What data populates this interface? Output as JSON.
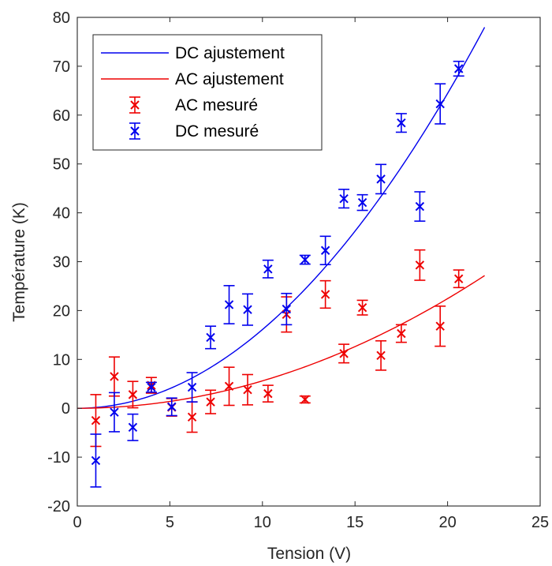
{
  "chart_data": {
    "type": "scatter",
    "xlabel": "Tension (V)",
    "ylabel": "Température (K)",
    "xlim": [
      0,
      25
    ],
    "ylim": [
      -20,
      80
    ],
    "xticks": [
      0,
      5,
      10,
      15,
      20,
      25
    ],
    "yticks": [
      -20,
      -10,
      0,
      10,
      20,
      30,
      40,
      50,
      60,
      70,
      80
    ],
    "grid": false,
    "legend_position": "top-left",
    "colors": {
      "dc": "#0000ee",
      "ac": "#ee0000"
    },
    "fits": [
      {
        "name": "DC ajustement",
        "color": "#0000ee",
        "coef": 0.1611,
        "power": 2,
        "x_range": [
          0,
          22
        ]
      },
      {
        "name": "AC ajustement",
        "color": "#ee0000",
        "coef": 0.0561,
        "power": 2,
        "x_range": [
          0,
          22
        ]
      }
    ],
    "series": [
      {
        "name": "AC mesuré",
        "color": "#ee0000",
        "points": [
          {
            "x": 1.0,
            "y": -2.5,
            "err": 5.3
          },
          {
            "x": 2.0,
            "y": 6.5,
            "err": 4.0
          },
          {
            "x": 3.0,
            "y": 2.8,
            "err": 2.7
          },
          {
            "x": 4.0,
            "y": 4.7,
            "err": 1.6
          },
          {
            "x": 5.1,
            "y": 0.2,
            "err": 1.8
          },
          {
            "x": 6.2,
            "y": -1.8,
            "err": 3.1
          },
          {
            "x": 7.2,
            "y": 1.3,
            "err": 2.4
          },
          {
            "x": 8.2,
            "y": 4.5,
            "err": 3.9
          },
          {
            "x": 9.2,
            "y": 3.8,
            "err": 3.1
          },
          {
            "x": 10.3,
            "y": 3.0,
            "err": 1.7
          },
          {
            "x": 11.3,
            "y": 19.2,
            "err": 3.6
          },
          {
            "x": 12.3,
            "y": 1.8,
            "err": 0.7
          },
          {
            "x": 13.4,
            "y": 23.3,
            "err": 2.8
          },
          {
            "x": 14.4,
            "y": 11.2,
            "err": 1.9
          },
          {
            "x": 15.4,
            "y": 20.6,
            "err": 1.5
          },
          {
            "x": 16.4,
            "y": 10.8,
            "err": 3.0
          },
          {
            "x": 17.5,
            "y": 15.3,
            "err": 1.8
          },
          {
            "x": 18.5,
            "y": 29.3,
            "err": 3.1
          },
          {
            "x": 19.6,
            "y": 16.8,
            "err": 4.1
          },
          {
            "x": 20.6,
            "y": 26.5,
            "err": 1.8
          }
        ]
      },
      {
        "name": "DC mesuré",
        "color": "#0000ee",
        "points": [
          {
            "x": 1.0,
            "y": -10.7,
            "err": 5.4
          },
          {
            "x": 2.0,
            "y": -0.8,
            "err": 4.0
          },
          {
            "x": 3.0,
            "y": -3.9,
            "err": 2.7
          },
          {
            "x": 4.0,
            "y": 4.3,
            "err": 1.0
          },
          {
            "x": 5.1,
            "y": 0.3,
            "err": 1.8
          },
          {
            "x": 6.2,
            "y": 4.3,
            "err": 3.0
          },
          {
            "x": 7.2,
            "y": 14.5,
            "err": 2.3
          },
          {
            "x": 8.2,
            "y": 21.2,
            "err": 3.9
          },
          {
            "x": 9.2,
            "y": 20.2,
            "err": 3.2
          },
          {
            "x": 10.3,
            "y": 28.5,
            "err": 1.8
          },
          {
            "x": 11.3,
            "y": 20.3,
            "err": 3.2
          },
          {
            "x": 12.3,
            "y": 30.4,
            "err": 0.9
          },
          {
            "x": 13.4,
            "y": 32.3,
            "err": 2.9
          },
          {
            "x": 14.4,
            "y": 42.9,
            "err": 1.9
          },
          {
            "x": 15.4,
            "y": 42.1,
            "err": 1.6
          },
          {
            "x": 16.4,
            "y": 46.9,
            "err": 3.0
          },
          {
            "x": 17.5,
            "y": 58.4,
            "err": 1.9
          },
          {
            "x": 18.5,
            "y": 41.3,
            "err": 3.0
          },
          {
            "x": 19.6,
            "y": 62.3,
            "err": 4.1
          },
          {
            "x": 20.6,
            "y": 69.5,
            "err": 1.5
          }
        ]
      }
    ],
    "legend": [
      {
        "label": "DC ajustement",
        "kind": "line",
        "color": "#0000ee"
      },
      {
        "label": "AC ajustement",
        "kind": "line",
        "color": "#ee0000"
      },
      {
        "label": "AC mesuré",
        "kind": "errorbar",
        "color": "#ee0000"
      },
      {
        "label": "DC mesuré",
        "kind": "errorbar",
        "color": "#0000ee"
      }
    ]
  }
}
